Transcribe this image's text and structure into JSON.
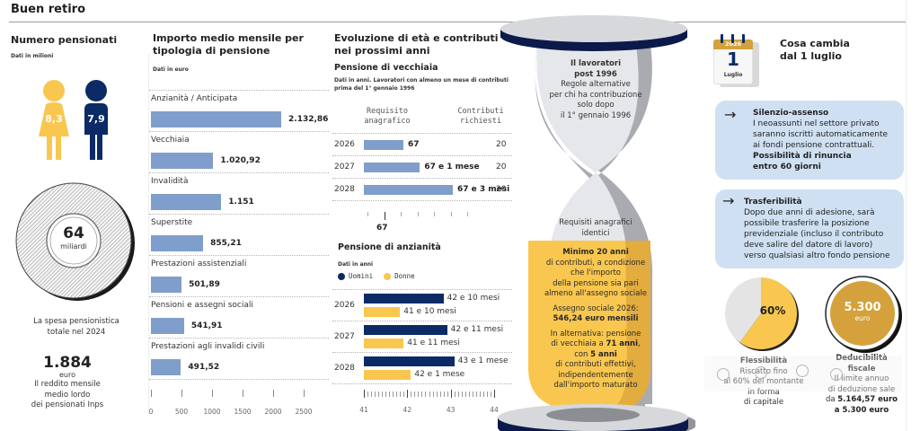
{
  "header": {
    "title": "Buen retiro"
  },
  "pensioners": {
    "title": "Numero pensionati",
    "note": "Dati in milioni",
    "female_value": "8,3",
    "male_value": "7,9",
    "colors": {
      "female": "#f9c74f",
      "male": "#0b2a66"
    }
  },
  "spending": {
    "value": "64",
    "unit": "miliardi",
    "caption_line1": "La spesa pensionistica",
    "caption_line2": "totale nel 2024"
  },
  "income": {
    "value": "1.884",
    "unit": "euro",
    "caption_line1": "Il reddito mensile",
    "caption_line2": "medio lordo",
    "caption_line3": "dei pensionati Inps"
  },
  "chart_data": [
    {
      "type": "bar",
      "orientation": "horizontal",
      "title": "Importo medio mensile per tipologia di pensione",
      "note": "Dati in euro",
      "categories": [
        "Anzianità / Anticipata",
        "Vecchiaia",
        "Invalidità",
        "Superstite",
        "Prestazioni assistenziali",
        "Pensioni e assegni sociali",
        "Prestazioni agli invalidi civili"
      ],
      "values": [
        2132.86,
        1020.92,
        1151,
        855.21,
        501.89,
        541.91,
        491.52
      ],
      "value_labels": [
        "2.132,86",
        "1.020,92",
        "1.151",
        "855,21",
        "501,89",
        "541,91",
        "491,52"
      ],
      "xlim": [
        0,
        2500
      ],
      "xticks": [
        "0",
        "500",
        "1000",
        "1500",
        "2000",
        "2500"
      ],
      "color": "#7f9ecb"
    },
    {
      "type": "bar",
      "orientation": "horizontal",
      "title": "Pensione di vecchiaia",
      "note": "Dati in anni. Lavoratori con almeno un mese di contributi prima del 1° gennaio 1996",
      "col_headers": [
        "Requisito anagrafico",
        "Contributi richiesti"
      ],
      "categories": [
        "2026",
        "2027",
        "2028"
      ],
      "values_years": [
        67,
        67.0833,
        67.25
      ],
      "value_labels": [
        "67",
        "67 e 1 mese",
        "67 e 3 mesi"
      ],
      "contributions": [
        "20",
        "20",
        "20"
      ],
      "axis_label": "67",
      "color": "#7f9ecb"
    },
    {
      "type": "bar",
      "orientation": "horizontal",
      "title": "Pensione di anzianità",
      "note": "Dati in anni",
      "legend": [
        {
          "name": "Uomini",
          "color": "#0b2a66"
        },
        {
          "name": "Donne",
          "color": "#f9c74f"
        }
      ],
      "categories": [
        "2026",
        "2027",
        "2028"
      ],
      "series": [
        {
          "name": "Uomini",
          "values": [
            42.8333,
            42.9167,
            43.0833
          ],
          "labels": [
            "42 e 10 mesi",
            "42 e 11 mesi",
            "43 e 1 mese"
          ]
        },
        {
          "name": "Donne",
          "values": [
            41.8333,
            41.9167,
            42.0833
          ],
          "labels": [
            "41 e 10 mesi",
            "41 e 11 mesi",
            "42 e 1 mese"
          ]
        }
      ],
      "xlim": [
        41,
        44
      ],
      "xticks": [
        "41",
        "42",
        "43",
        "44"
      ]
    },
    {
      "type": "pie",
      "title": "Flessibilità",
      "values": [
        60,
        40
      ],
      "label": "60%",
      "colors": [
        "#f9c74f",
        "#e4e4e4"
      ]
    }
  ],
  "section_evolution": {
    "title_line1": "Evoluzione di età e contributi",
    "title_line2": "nei prossimi anni"
  },
  "hourglass": {
    "top_bold1": "Il lavoratori",
    "top_bold2": "post 1996",
    "top_lines": [
      "Regole alternative",
      "per chi ha contribuzione",
      "solo dopo",
      "il 1° gennaio 1996"
    ],
    "mid_lines": [
      "Requisiti anagrafici",
      "identici"
    ],
    "min_bold": "Minimo 20 anni",
    "min_lines": [
      "di contributi, a condizione",
      "che l'importo",
      "della pensione sia pari",
      "almeno all'assegno sociale"
    ],
    "assegno_line": "Assegno sociale 2026:",
    "assegno_bold": "546,24 euro mensili",
    "alt_line1": "In alternativa: pensione",
    "alt_line2a": "di vecchiaia a ",
    "alt_line2b": "71 anni",
    "alt_line3a": "con ",
    "alt_line3b": "5 anni",
    "alt_lines": [
      "di contributi effettivi,",
      "indipendentemente",
      "dall'importo maturato"
    ]
  },
  "changes": {
    "calendar": {
      "year": "2026",
      "day": "1",
      "month": "Luglio"
    },
    "title_line1": "Cosa cambia",
    "title_line2": "dal 1 luglio",
    "cards": [
      {
        "title": "Silenzio-assenso",
        "lines": [
          "I neoassunti nel settore privato",
          "saranno iscritti automaticamente",
          "ai fondi pensione contrattuali."
        ],
        "bold_lines": [
          "Possibilità di rinuncia",
          "entro 60 giorni"
        ]
      },
      {
        "title": "Trasferibilità",
        "lines": [
          "Dopo due anni di adesione, sarà",
          "possibile trasferire la posizione",
          "previdenziale (incluso il contributo",
          "deve salire del datore di lavoro)",
          "verso qualsiasi altro fondo pensione"
        ]
      }
    ],
    "flex": {
      "title": "Flessibilità",
      "lines": [
        "Riscatto fino",
        "al 60% del montante",
        "in forma",
        "di capitale"
      ]
    },
    "deduct": {
      "badge_value": "5.300",
      "badge_unit": "euro",
      "title_line1": "Deducibilità",
      "title_line2": "fiscale",
      "lines": [
        "Il limite annuo",
        "di deduzione sale"
      ],
      "bold_line1a": "da ",
      "bold_line1b": "5.164,57 euro",
      "bold_line2": "a 5.300 euro"
    }
  }
}
